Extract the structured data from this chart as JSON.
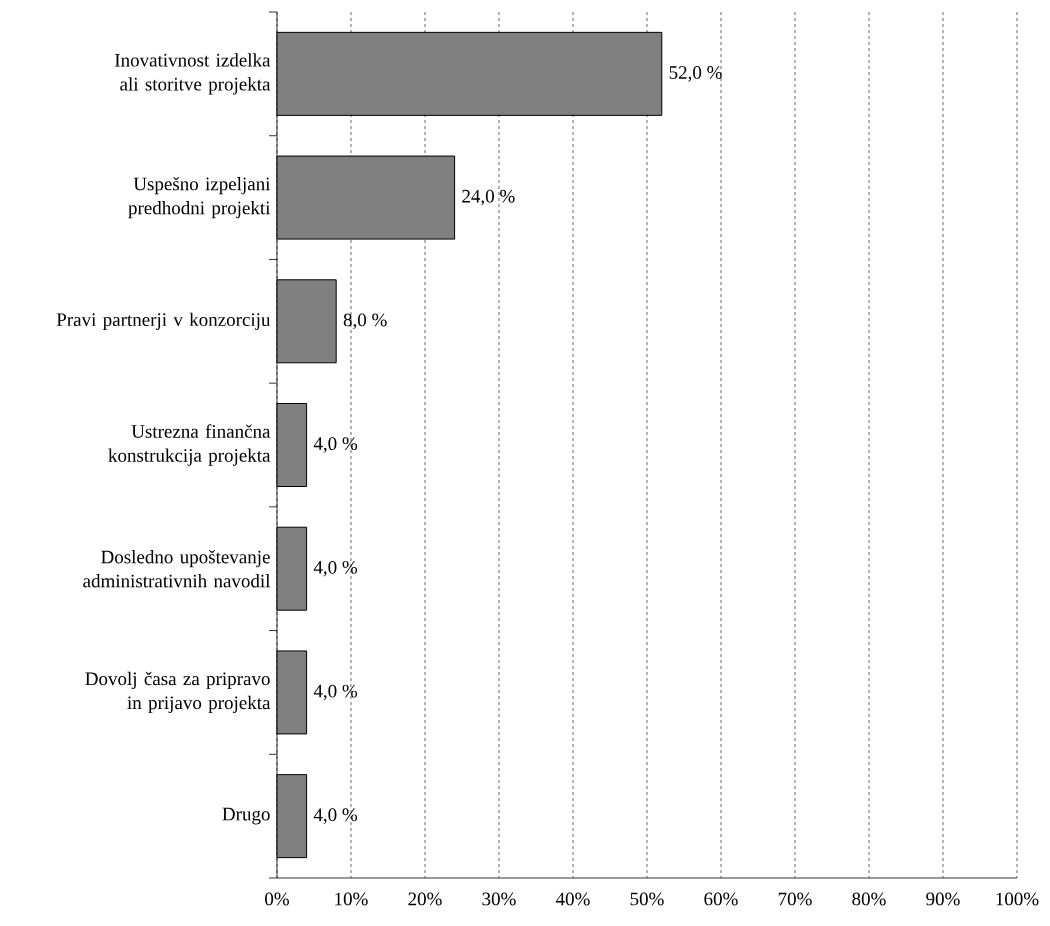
{
  "chart_data": {
    "type": "bar",
    "orientation": "horizontal",
    "categories": [
      "Inovativnost izdelka ali storitve projekta",
      "Uspešno izpeljani predhodni projekti",
      "Pravi partnerji v konzorciju",
      "Ustrezna finančna konstrukcija projekta",
      "Dosledno upoštevanje administrativnih navodil",
      "Dovolj časa za pripravo in prijavo projekta",
      "Drugo"
    ],
    "values": [
      52,
      24,
      8,
      4,
      4,
      4,
      4
    ],
    "value_labels": [
      "52,0 %",
      "24,0 %",
      "8,0 %",
      "4,0 %",
      "4,0 %",
      "4,0 %",
      "4,0 %"
    ],
    "color": "#808080",
    "xlim": [
      0,
      100
    ],
    "xticks": [
      {
        "value": 0,
        "label": "0%"
      },
      {
        "value": 10,
        "label": "10%"
      },
      {
        "value": 20,
        "label": "20%"
      },
      {
        "value": 30,
        "label": "30%"
      },
      {
        "value": 40,
        "label": "40%"
      },
      {
        "value": 50,
        "label": "50%"
      },
      {
        "value": 60,
        "label": "60%"
      },
      {
        "value": 70,
        "label": "70%"
      },
      {
        "value": 80,
        "label": "80%"
      },
      {
        "value": 90,
        "label": "90%"
      },
      {
        "value": 100,
        "label": "100%"
      }
    ],
    "grid": "x"
  }
}
